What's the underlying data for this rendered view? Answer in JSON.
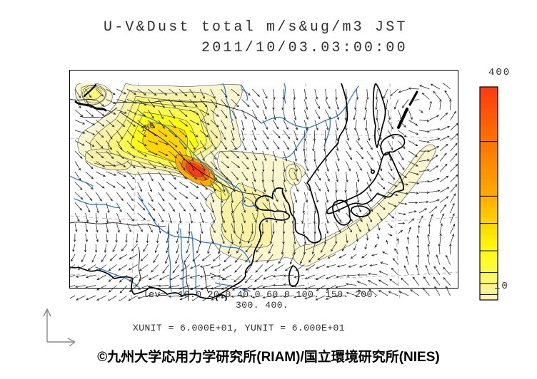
{
  "title": {
    "line1": "U-V&Dust total m/s&ug/m3 JST",
    "line2": "2011/10/03.03:00:00"
  },
  "legend": {
    "levels_line1": "lev=  10.0 20.0 40.0 60.0 100. 150. 200.",
    "levels_line2": "300. 400.",
    "units_line": "XUNIT = 6.000E+01, YUNIT = 6.000E+01"
  },
  "colorbar": {
    "top_label": "400",
    "bottom_label": "10",
    "min": 10,
    "max": 400,
    "levels": [
      10,
      20,
      40,
      60,
      100,
      150,
      200,
      300,
      400
    ],
    "stops": [
      [
        10,
        "#FAF6CE"
      ],
      [
        20,
        "#F8F2A6"
      ],
      [
        40,
        "#FBF77C"
      ],
      [
        60,
        "#FDFA4E"
      ],
      [
        100,
        "#FFFC0C"
      ],
      [
        150,
        "#FFD600"
      ],
      [
        200,
        "#FFAC00"
      ],
      [
        300,
        "#FF7400"
      ],
      [
        400,
        "#FF3A10"
      ]
    ]
  },
  "map": {
    "contour_label": "150",
    "colors": {
      "river": "#2B7BE4",
      "coast": "#000000",
      "arrow": "#2a2a2a",
      "graticule": "#9a9a9a",
      "contour_line": "#555555"
    }
  },
  "footer": {
    "copyright": "©九州大学応用力学研究所(RIAM)/国立環境研究所(NIES)"
  },
  "chart_data": {
    "type": "heatmap",
    "title": "U-V&Dust total m/s&ug/m3 JST",
    "timestamp": "2011/10/03.03:00:00",
    "time_zone": "JST",
    "field": "dust total concentration with U-V wind vectors",
    "units": {
      "wind": "m/s",
      "dust": "ug/m3"
    },
    "contour_levels": [
      10.0,
      20.0,
      40.0,
      60.0,
      100,
      150,
      200,
      300,
      400
    ],
    "colorbar_range": [
      10,
      400
    ],
    "xunit": "6.000E+01",
    "yunit": "6.000E+01",
    "region": "East Asia (Mongolia, China, Korea, Japan)",
    "notable_pattern": "Dust maximum above 300 ug/m3 over the Gobi/Inner Mongolia plume with tail extending southeast; secondary 10-20 ug/m3 band stretching across the Yellow Sea, Korea and southern Japan toward the northeast Pacific"
  }
}
